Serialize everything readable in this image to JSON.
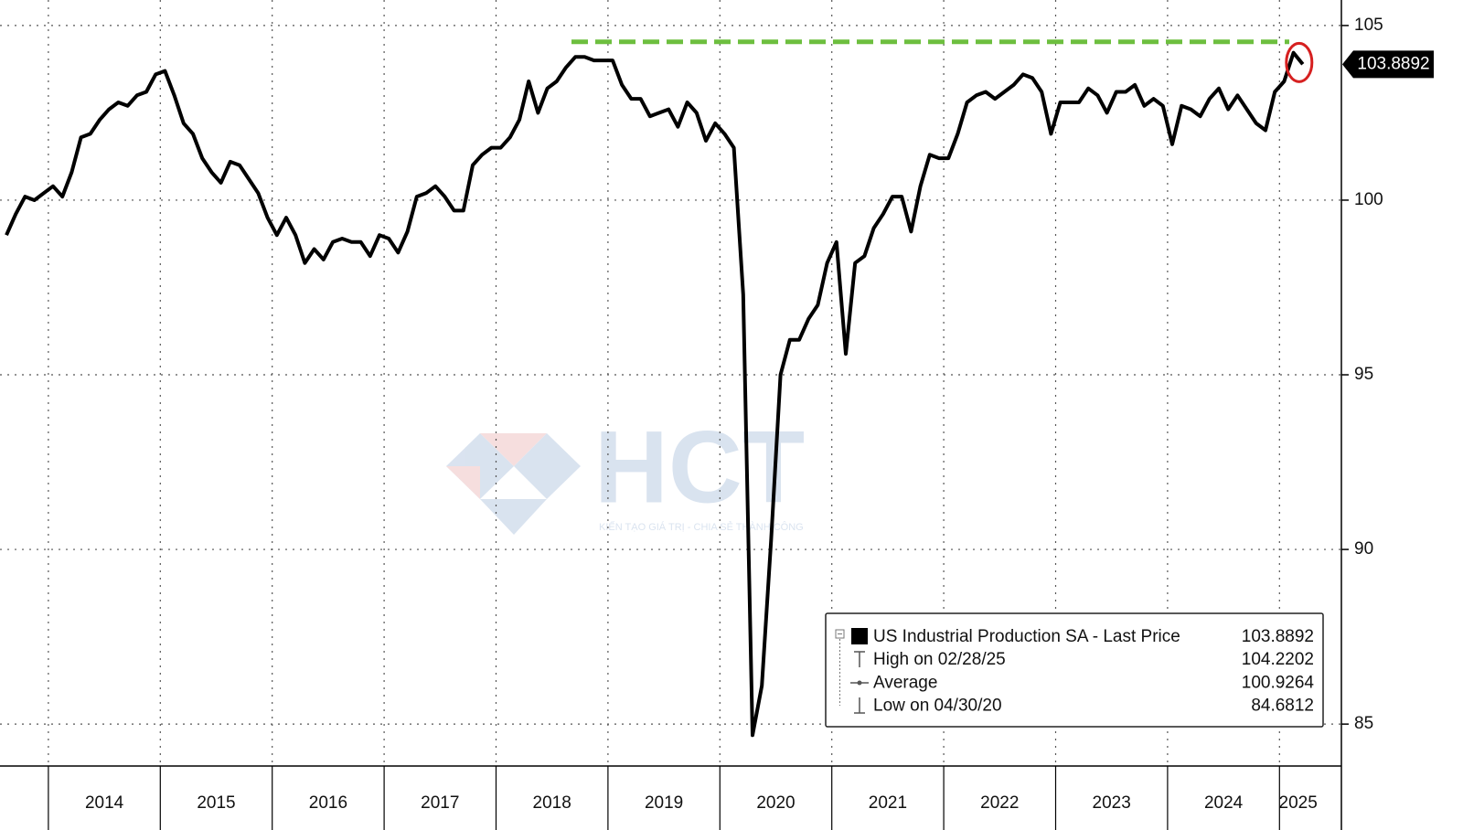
{
  "chart_data": {
    "type": "line",
    "categories": [
      null,
      null,
      null,
      null,
      null,
      null,
      null,
      null,
      null,
      null,
      null,
      "2014",
      null,
      null,
      null,
      null,
      null,
      null,
      null,
      null,
      null,
      null,
      null,
      "2015",
      null,
      null,
      null,
      null,
      null,
      null,
      null,
      null,
      null,
      null,
      null,
      "2016",
      null,
      null,
      null,
      null,
      null,
      null,
      null,
      null,
      null,
      null,
      null,
      "2017",
      null,
      null,
      null,
      null,
      null,
      null,
      null,
      null,
      null,
      null,
      null,
      "2018",
      null,
      null,
      null,
      null,
      null,
      null,
      null,
      null,
      null,
      null,
      null,
      "2019",
      null,
      null,
      null,
      null,
      null,
      null,
      null,
      null,
      null,
      null,
      null,
      "2020",
      null,
      null,
      null,
      null,
      null,
      null,
      null,
      null,
      null,
      null,
      null,
      "2021",
      null,
      null,
      null,
      null,
      null,
      null,
      null,
      null,
      null,
      null,
      null,
      "2022",
      null,
      null,
      null,
      null,
      null,
      null,
      null,
      null,
      null,
      null,
      null,
      "2023",
      null,
      null,
      null,
      null,
      null,
      null,
      null,
      null,
      null,
      null,
      null,
      "2024",
      null,
      null,
      null,
      null,
      null,
      null,
      null,
      "2025"
    ],
    "series": [
      {
        "name": "US Industrial Production SA - Last Price",
        "color": "#000000",
        "values": [
          99.0,
          99.6,
          100.1,
          100.0,
          100.2,
          100.4,
          100.1,
          100.8,
          101.8,
          101.9,
          102.3,
          102.6,
          102.8,
          102.7,
          103.0,
          103.1,
          103.6,
          103.7,
          103.0,
          102.2,
          101.9,
          101.2,
          100.8,
          100.5,
          101.1,
          101.0,
          100.6,
          100.2,
          99.5,
          99.0,
          99.5,
          99.0,
          98.2,
          98.6,
          98.3,
          98.8,
          98.9,
          98.8,
          98.8,
          98.4,
          99.0,
          98.9,
          98.5,
          99.1,
          100.1,
          100.2,
          100.4,
          100.1,
          99.7,
          99.7,
          101.0,
          101.3,
          101.5,
          101.5,
          101.8,
          102.3,
          103.4,
          102.5,
          103.2,
          103.4,
          103.8,
          104.1,
          104.1,
          104.0,
          104.0,
          104.0,
          103.3,
          102.9,
          102.9,
          102.4,
          102.5,
          102.6,
          102.1,
          102.8,
          102.5,
          101.7,
          102.2,
          101.9,
          101.5,
          97.3,
          84.6812,
          86.1,
          90.3,
          95.0,
          96.0,
          96.0,
          96.6,
          97.0,
          98.2,
          98.8,
          95.6,
          98.2,
          98.4,
          99.2,
          99.6,
          100.1,
          100.1,
          99.1,
          100.4,
          101.3,
          101.2,
          101.2,
          101.9,
          102.8,
          103.0,
          103.1,
          102.9,
          103.1,
          103.3,
          103.6,
          103.5,
          103.1,
          101.9,
          102.8,
          102.8,
          102.8,
          103.2,
          103.0,
          102.5,
          103.1,
          103.1,
          103.3,
          102.7,
          102.9,
          102.7,
          101.6,
          102.7,
          102.6,
          102.4,
          102.9,
          103.2,
          102.6,
          103.0,
          102.6,
          102.2,
          102.0,
          103.1,
          103.4,
          104.2202,
          103.8892
        ]
      }
    ],
    "legend_stats": [
      {
        "label": "High on 02/28/25",
        "value": 104.2202
      },
      {
        "label": "Average",
        "value": 100.9264
      },
      {
        "label": "Low on 04/30/20",
        "value": 84.6812
      }
    ],
    "ylim": [
      83.8,
      105.73
    ],
    "yticks": [
      85,
      90,
      95,
      100,
      105
    ],
    "y_axis_side": "right",
    "grid": true,
    "high_line_color": "#6dbf3f",
    "watermark": {
      "title": "HCT",
      "subtitle": "KIẾN TẠO GIÁ TRỊ - CHIA SẺ THÀNH CÔNG"
    }
  }
}
